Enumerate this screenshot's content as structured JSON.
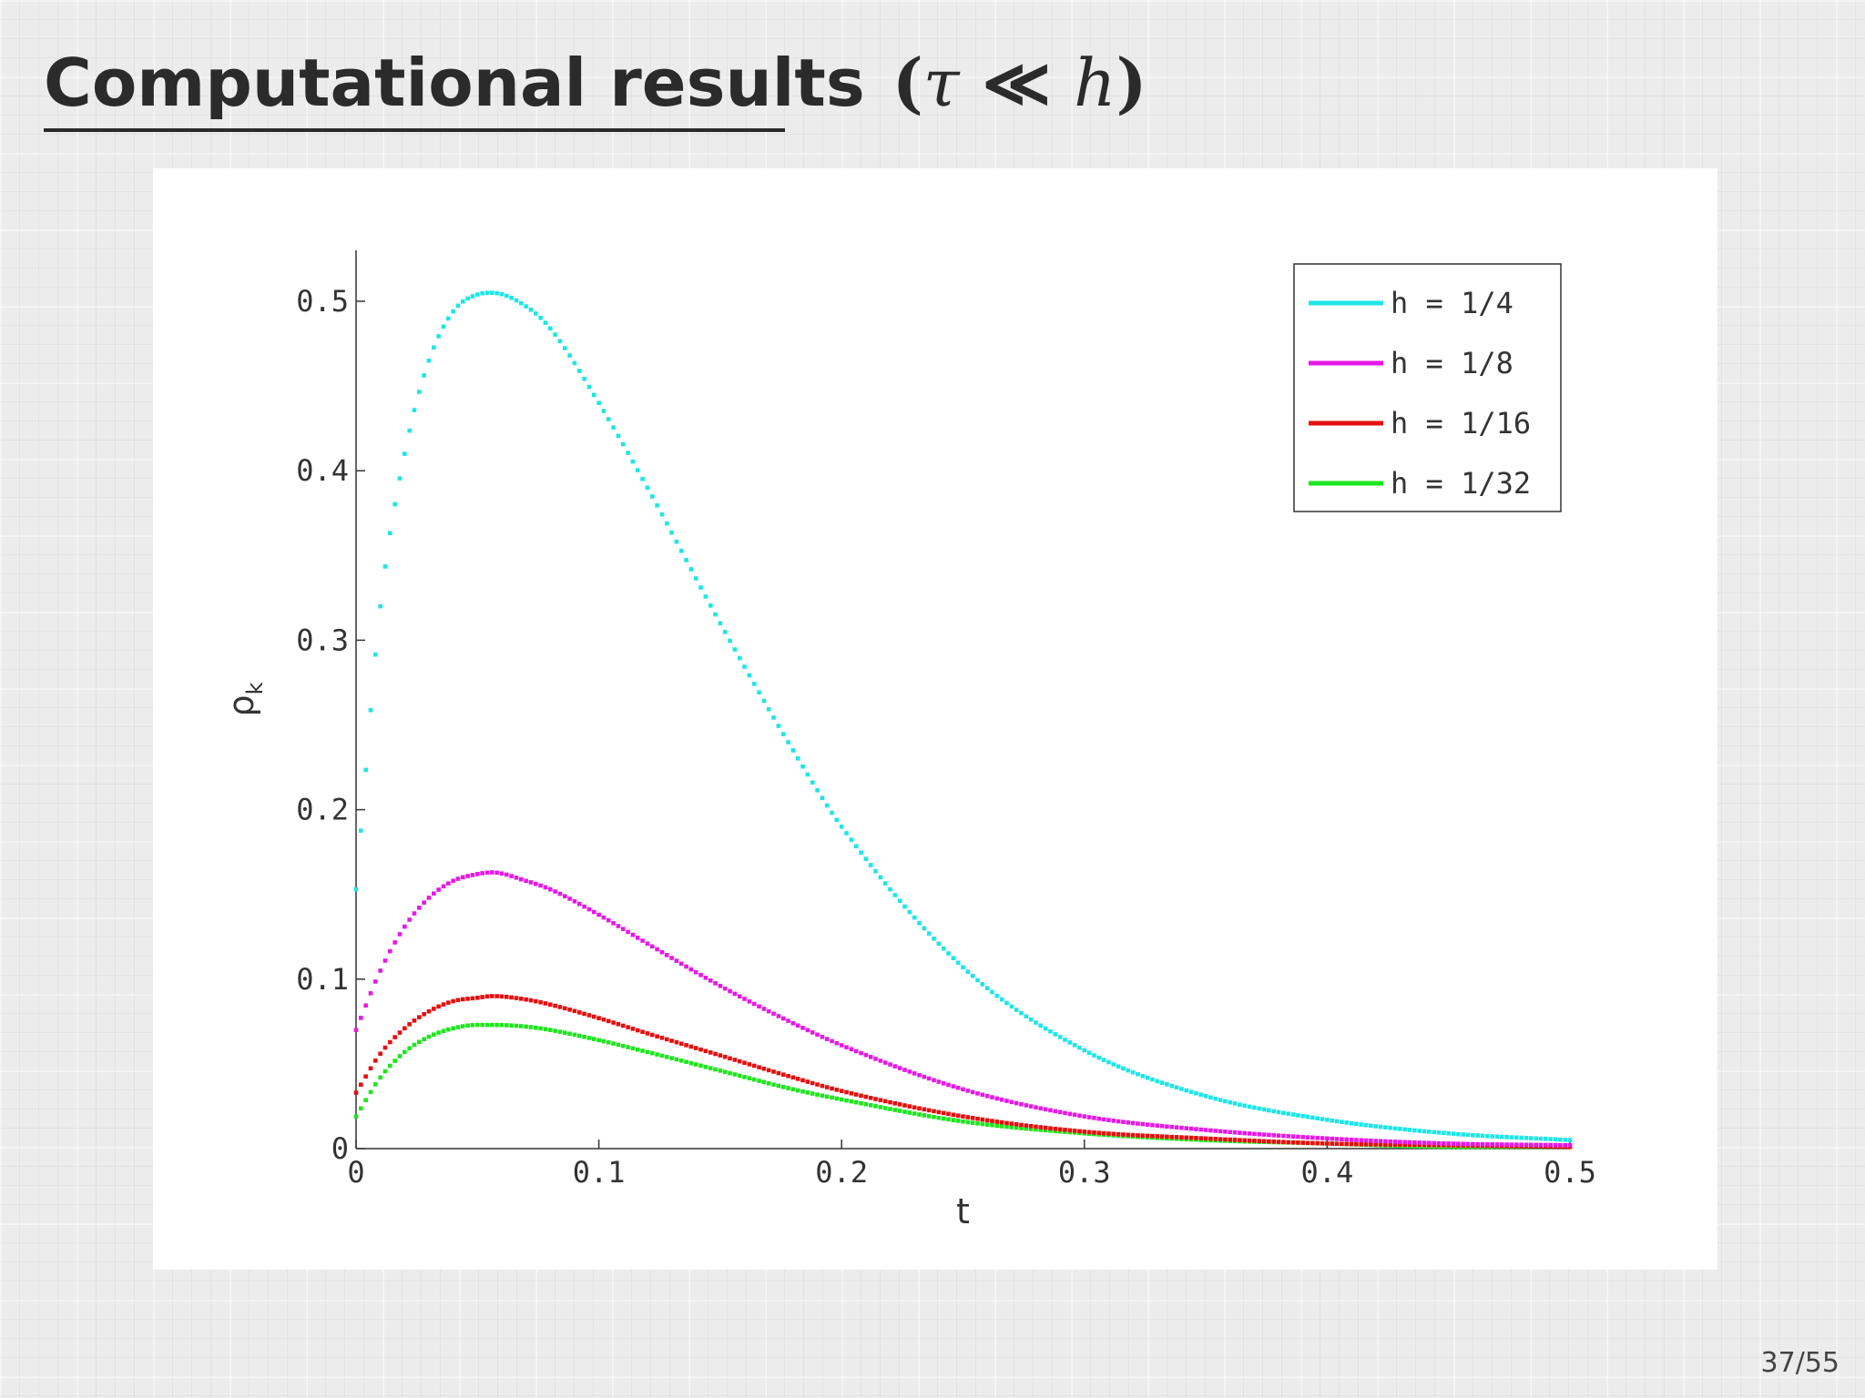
{
  "slide": {
    "title_text": "Computational results",
    "title_math_open": "(",
    "title_math_tau": "τ",
    "title_math_rel": " ≪ ",
    "title_math_h": "h",
    "title_math_close": ")",
    "page_number": "37/55"
  },
  "chart_data": {
    "type": "scatter",
    "title": "",
    "xlabel": "t",
    "ylabel": "ρ",
    "ylabel_subscript": "k",
    "xlim": [
      0,
      0.5
    ],
    "ylim": [
      0,
      0.53
    ],
    "xticks": [
      0,
      0.1,
      0.2,
      0.3,
      0.4,
      0.5
    ],
    "xtick_labels": [
      "0",
      "0.1",
      "0.2",
      "0.3",
      "0.4",
      "0.5"
    ],
    "yticks": [
      0,
      0.1,
      0.2,
      0.3,
      0.4,
      0.5
    ],
    "ytick_labels": [
      "0",
      "0.1",
      "0.2",
      "0.3",
      "0.4",
      "0.5"
    ],
    "grid": false,
    "legend_position": "top-right",
    "series": [
      {
        "name": "h = 1/4",
        "color": "#1ee6e6",
        "x": [
          0,
          0.01,
          0.02,
          0.03,
          0.04,
          0.05,
          0.056,
          0.07,
          0.08,
          0.1,
          0.12,
          0.15,
          0.18,
          0.2,
          0.25,
          0.3,
          0.35,
          0.4,
          0.45,
          0.5
        ],
        "y": [
          0.153,
          0.32,
          0.41,
          0.465,
          0.494,
          0.504,
          0.505,
          0.497,
          0.484,
          0.44,
          0.39,
          0.31,
          0.235,
          0.19,
          0.107,
          0.058,
          0.031,
          0.017,
          0.009,
          0.005
        ]
      },
      {
        "name": "h = 1/8",
        "color": "#e619e6",
        "x": [
          0,
          0.01,
          0.02,
          0.03,
          0.04,
          0.05,
          0.056,
          0.07,
          0.08,
          0.1,
          0.12,
          0.15,
          0.18,
          0.2,
          0.25,
          0.3,
          0.35,
          0.4,
          0.45,
          0.5
        ],
        "y": [
          0.07,
          0.105,
          0.131,
          0.148,
          0.158,
          0.162,
          0.163,
          0.158,
          0.153,
          0.138,
          0.121,
          0.096,
          0.074,
          0.061,
          0.035,
          0.019,
          0.011,
          0.006,
          0.003,
          0.002
        ]
      },
      {
        "name": "h = 1/16",
        "color": "#e60f0f",
        "x": [
          0,
          0.01,
          0.02,
          0.03,
          0.04,
          0.05,
          0.056,
          0.07,
          0.08,
          0.1,
          0.12,
          0.15,
          0.18,
          0.2,
          0.25,
          0.3,
          0.35,
          0.4,
          0.45,
          0.5
        ],
        "y": [
          0.033,
          0.056,
          0.071,
          0.081,
          0.087,
          0.089,
          0.09,
          0.088,
          0.085,
          0.077,
          0.068,
          0.055,
          0.042,
          0.034,
          0.019,
          0.01,
          0.006,
          0.003,
          0.002,
          0.001
        ]
      },
      {
        "name": "h = 1/32",
        "color": "#1ee61e",
        "x": [
          0,
          0.01,
          0.02,
          0.03,
          0.04,
          0.05,
          0.056,
          0.07,
          0.08,
          0.1,
          0.12,
          0.15,
          0.18,
          0.2,
          0.25,
          0.3,
          0.35,
          0.4,
          0.45,
          0.5
        ],
        "y": [
          0.019,
          0.042,
          0.057,
          0.066,
          0.071,
          0.073,
          0.073,
          0.072,
          0.07,
          0.064,
          0.057,
          0.046,
          0.035,
          0.029,
          0.016,
          0.009,
          0.005,
          0.003,
          0.001,
          0.001
        ]
      }
    ]
  }
}
